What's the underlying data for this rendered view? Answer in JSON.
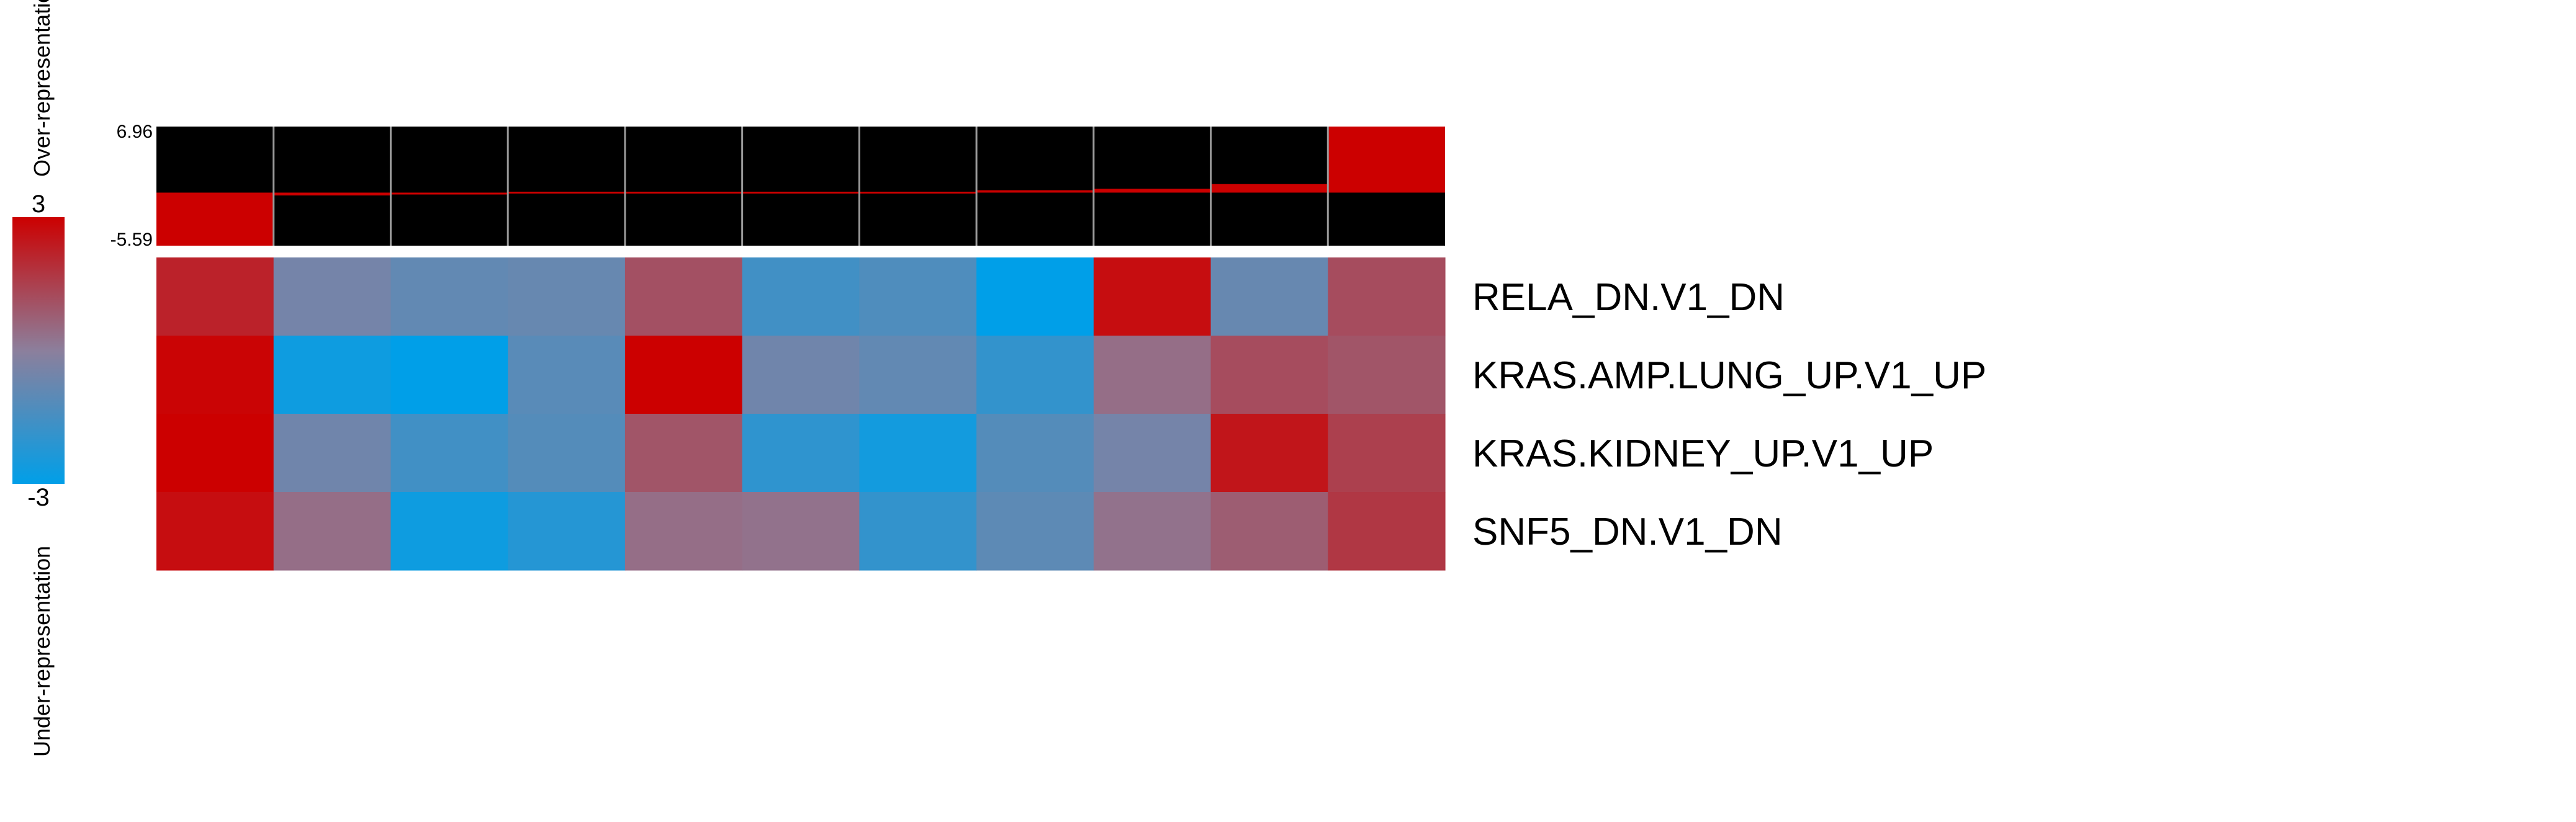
{
  "chart_data": {
    "type": "heatmap",
    "rows": [
      "RELA_DN.V1_DN",
      "KRAS.AMP.LUNG_UP.V1_UP",
      "KRAS.KIDNEY_UP.V1_UP",
      "SNF5_DN.V1_DN"
    ],
    "n_columns": 11,
    "values": [
      [
        2.2,
        -0.5,
        -0.9,
        -0.8,
        1.1,
        -1.6,
        -1.3,
        -3.0,
        2.7,
        -0.8,
        1.2
      ],
      [
        2.9,
        -2.7,
        -3.0,
        -1.1,
        3.0,
        -0.6,
        -0.9,
        -1.9,
        0.4,
        1.2,
        1.0
      ],
      [
        3.0,
        -0.6,
        -1.6,
        -1.2,
        1.0,
        -2.0,
        -2.6,
        -1.2,
        -0.5,
        2.5,
        1.5
      ],
      [
        2.7,
        0.4,
        -2.7,
        -2.2,
        0.4,
        0.3,
        -1.9,
        -1.0,
        0.3,
        0.8,
        1.7
      ]
    ],
    "color_scale": {
      "min": -3,
      "max": 3,
      "min_label": "-3",
      "max_label": "3",
      "low_color": "#009fe8",
      "mid_color": "#8c7f9c",
      "high_color": "#cc0000",
      "top_caption": "Over-representation",
      "bottom_caption": "Under-representation"
    },
    "score_track": {
      "ymax": 6.96,
      "ymin": -5.59,
      "ymax_label": "6.96",
      "ymin_label": "-5.59",
      "values": [
        -5.59,
        -0.3,
        -0.2,
        -0.1,
        -0.05,
        0.05,
        0.15,
        0.25,
        0.4,
        0.9,
        6.96
      ],
      "bar_color": "#cc0000",
      "background": "#000000"
    }
  }
}
